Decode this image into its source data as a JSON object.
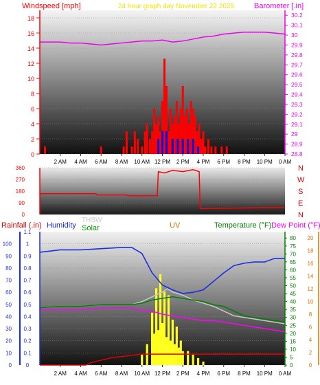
{
  "header": {
    "windspeed_label": "Windspeed [mph]",
    "title": "24 hour graph day   November 22 2025",
    "barometer_label": "Barometer [.in]"
  },
  "colors": {
    "windspeed": "#ff0000",
    "barometer": "#ee00ee",
    "humidity": "#1b2ee0",
    "rainfall_axis": "#1b2ee0",
    "thsw": "#c8c8c8",
    "solar": "#00a000",
    "uv": "#e07000",
    "temperature": "#008000",
    "dew_point": "#ff00ff",
    "rain_line": "#e00000",
    "solar_fill": "#ffff20"
  },
  "chart_data": [
    {
      "type": "bar",
      "title": "24 hour graph day   November 22 2025",
      "x_tick_labels": [
        "2 AM",
        "4 AM",
        "6 AM",
        "8 AM",
        "10 AM",
        "12 PM",
        "2 PM",
        "4 PM",
        "6 PM",
        "8 PM",
        "10 PM",
        "0 AM"
      ],
      "y_left": {
        "label": "Windspeed [mph]",
        "ticks": [
          0,
          2,
          4,
          6,
          8,
          10,
          12,
          14,
          16,
          18
        ],
        "range": [
          0,
          19
        ]
      },
      "y_right": {
        "label": "Barometer [.in]",
        "ticks": [
          28.8,
          28.9,
          29,
          29.1,
          29.2,
          29.3,
          29.4,
          29.5,
          29.6,
          29.7,
          29.8,
          29.9,
          30,
          30.1,
          30.2
        ],
        "range": [
          28.8,
          30.25
        ]
      },
      "series": [
        {
          "name": "Windspeed",
          "kind": "bar",
          "color": "#ff0000",
          "hours": [
            0.5,
            6,
            8.2,
            8.5,
            9,
            9.3,
            9.6,
            10,
            10.3,
            10.5,
            10.8,
            11,
            11.2,
            11.4,
            11.6,
            11.8,
            12,
            12.2,
            12.4,
            12.6,
            12.8,
            13,
            13.2,
            13.4,
            13.6,
            13.8,
            14,
            14.2,
            14.4,
            14.6,
            14.8,
            15,
            15.2,
            15.4,
            15.6,
            15.8,
            16,
            16.2,
            16.5,
            16.8,
            17.2,
            17.8,
            18.3
          ],
          "values": [
            1,
            1,
            1,
            3,
            1,
            3,
            2,
            1,
            3,
            4,
            2,
            3,
            6,
            4,
            5,
            3,
            7,
            12.6,
            9,
            3,
            6,
            4,
            5,
            7,
            4,
            6,
            9,
            5,
            6,
            4,
            7,
            6,
            5,
            3,
            4,
            2,
            3,
            1,
            2,
            1,
            1,
            1,
            1
          ]
        },
        {
          "name": "Wind gust",
          "kind": "bar",
          "color": "#0000ee",
          "hours": [
            11.6,
            12,
            12.4,
            13,
            13.5,
            14,
            14.5,
            15,
            15.5
          ],
          "values": [
            2,
            3,
            3,
            2,
            2,
            2,
            2,
            2,
            1
          ]
        },
        {
          "name": "Barometer",
          "kind": "line",
          "color": "#ee00ee",
          "x": [
            0,
            1,
            2,
            3,
            4,
            5,
            6,
            7,
            8,
            9,
            10,
            11,
            12,
            13,
            14,
            15,
            16,
            17,
            18,
            19,
            20,
            21,
            22,
            23,
            24
          ],
          "y": [
            29.93,
            29.93,
            29.93,
            29.92,
            29.92,
            29.91,
            29.9,
            29.91,
            29.92,
            29.93,
            29.94,
            29.94,
            29.95,
            29.93,
            29.94,
            29.96,
            29.98,
            29.99,
            30.01,
            30.02,
            30.03,
            30.03,
            30.03,
            30.02,
            30.01
          ]
        }
      ]
    },
    {
      "type": "line",
      "series": [
        {
          "name": "Wind direction",
          "color": "#ff0000",
          "x": [
            0,
            5.5,
            5.6,
            8.5,
            8.6,
            11.5,
            11.6,
            12.2,
            13,
            14,
            15,
            15.6,
            15.7,
            24
          ],
          "y": [
            160,
            160,
            150,
            150,
            145,
            145,
            330,
            320,
            340,
            330,
            345,
            330,
            45,
            55
          ]
        }
      ],
      "y_ticks": [
        0,
        90,
        180,
        270,
        360
      ],
      "y_range": [
        0,
        360
      ],
      "compass_labels": [
        "N",
        "W",
        "S",
        "E",
        "N"
      ]
    },
    {
      "type": "line",
      "legend": {
        "rainfall": "Rainfall (.in)",
        "humidity": "Humidity",
        "thsw": "THSW",
        "solar": "Solar",
        "uv": "UV",
        "temperature": "Temperature (°F)",
        "dew_point": "Dew Point (°F)"
      },
      "y_left_ticks": [
        "0",
        "0.1",
        "0.2",
        "0.3",
        "0.4",
        "0.5",
        "0.6",
        "0.7",
        "0.8",
        "0.9",
        "1",
        "1.1"
      ],
      "y_left_pct_ticks": [
        0,
        10,
        20,
        30,
        40,
        50,
        60,
        70,
        80,
        90,
        100
      ],
      "y_right_temp_ticks": [
        0,
        5,
        10,
        15,
        20,
        25,
        30,
        35,
        40,
        45,
        50,
        55,
        60,
        65,
        70,
        75,
        80
      ],
      "y_right_uv_ticks": [
        0,
        2,
        4,
        6,
        8,
        10,
        12,
        14,
        16,
        18,
        20
      ],
      "x_tick_labels": [
        "2 AM",
        "4 AM",
        "6 AM",
        "8 AM",
        "10 AM",
        "12 PM",
        "2 PM",
        "4 PM",
        "6 PM",
        "8 PM",
        "10 PM",
        "0 AM"
      ],
      "series": [
        {
          "name": "Humidity",
          "color": "#1b2ee0",
          "x": [
            0,
            2,
            4,
            6,
            8,
            9,
            10,
            11,
            12,
            13,
            14,
            15,
            16,
            17,
            18,
            19,
            20,
            21,
            22,
            23,
            24
          ],
          "y": [
            93,
            95,
            95,
            96,
            97,
            97,
            92,
            76,
            66,
            62,
            59,
            60,
            62,
            69,
            76,
            82,
            84,
            85,
            85,
            88,
            88
          ]
        },
        {
          "name": "THSW",
          "color": "#c8c8c8",
          "x": [
            0,
            2,
            4,
            6,
            8,
            9,
            10,
            11,
            12,
            12.5,
            13,
            14,
            15,
            16,
            17,
            18,
            19,
            20,
            21,
            22,
            23,
            24
          ],
          "y": [
            36,
            37,
            37,
            38,
            38,
            38,
            40,
            43,
            46,
            48,
            46,
            44,
            41,
            39,
            37,
            34,
            31,
            30,
            29,
            28,
            27,
            26
          ]
        },
        {
          "name": "Temperature",
          "color": "#008000",
          "x": [
            0,
            2,
            4,
            6,
            8,
            9,
            10,
            11,
            12,
            13,
            14,
            15,
            16,
            17,
            18,
            19,
            20,
            21,
            22,
            23,
            24
          ],
          "y": [
            36,
            37,
            37,
            38,
            38,
            38,
            39,
            41,
            42,
            43,
            42,
            41,
            40,
            38,
            37,
            34,
            31,
            30,
            29,
            28,
            27
          ]
        },
        {
          "name": "Dew Point",
          "color": "#ff00ff",
          "x": [
            0,
            2,
            4,
            6,
            8,
            9,
            10,
            11,
            12,
            13,
            14,
            15,
            16,
            17,
            18,
            19,
            20,
            21,
            22,
            23,
            24
          ],
          "y": [
            35,
            35,
            35,
            36,
            36,
            36,
            34,
            34,
            32,
            31,
            30,
            29,
            28,
            28,
            27,
            26,
            25,
            24,
            23,
            22,
            21
          ]
        },
        {
          "name": "Rainfall",
          "color": "#e00000",
          "x": [
            0,
            4.5,
            5,
            6,
            7,
            8,
            9,
            10,
            24
          ],
          "y": [
            0,
            0,
            0.02,
            0.04,
            0.06,
            0.07,
            0.08,
            0.09,
            0.09
          ]
        },
        {
          "name": "Solar",
          "color": "#ffff20",
          "hours": [
            10,
            10.5,
            11,
            11.2,
            11.4,
            11.6,
            11.8,
            12,
            12.2,
            12.4,
            12.6,
            12.8,
            13,
            13.2,
            13.4,
            13.6,
            13.8,
            14,
            14.5,
            15,
            15.5,
            16
          ],
          "values": [
            3,
            6,
            15,
            9,
            22,
            10,
            26,
            12,
            21,
            8,
            20,
            7,
            13,
            6,
            11,
            5,
            7,
            4,
            4,
            3,
            2,
            1
          ]
        }
      ]
    }
  ]
}
